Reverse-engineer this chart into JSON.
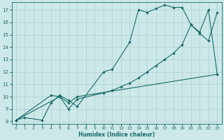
{
  "xlabel": "Humidex (Indice chaleur)",
  "bg_color": "#cce8e8",
  "line_color": "#1a6b6b",
  "grid_color": "#b0d0d0",
  "xlim": [
    -0.5,
    23.5
  ],
  "ylim": [
    7.8,
    17.6
  ],
  "yticks": [
    8,
    9,
    10,
    11,
    12,
    13,
    14,
    15,
    16,
    17
  ],
  "xticks": [
    0,
    1,
    2,
    3,
    4,
    5,
    6,
    7,
    8,
    9,
    10,
    11,
    12,
    13,
    14,
    15,
    16,
    17,
    18,
    19,
    20,
    21,
    22,
    23
  ],
  "s1_x": [
    0,
    1,
    3,
    4,
    5,
    6,
    7,
    10,
    11,
    13,
    14,
    15,
    16,
    17,
    18,
    19,
    20,
    21,
    22,
    23
  ],
  "s1_y": [
    8.1,
    8.3,
    8.1,
    9.5,
    10.1,
    9.7,
    9.2,
    12.0,
    12.2,
    14.4,
    17.0,
    16.8,
    17.1,
    17.4,
    17.2,
    17.2,
    15.8,
    15.1,
    14.5,
    16.8
  ],
  "s2_x": [
    0,
    4,
    5,
    6,
    7,
    10,
    11,
    12,
    13,
    14,
    15,
    16,
    17,
    18,
    19,
    20,
    21,
    22,
    23
  ],
  "s2_y": [
    8.1,
    10.1,
    10.0,
    9.0,
    9.8,
    10.3,
    10.5,
    10.8,
    11.1,
    11.5,
    12.0,
    12.5,
    13.0,
    13.5,
    14.2,
    15.8,
    15.2,
    17.0,
    11.8
  ],
  "s3_x": [
    0,
    5,
    6,
    7,
    23
  ],
  "s3_y": [
    8.1,
    10.0,
    9.5,
    10.0,
    11.8
  ]
}
